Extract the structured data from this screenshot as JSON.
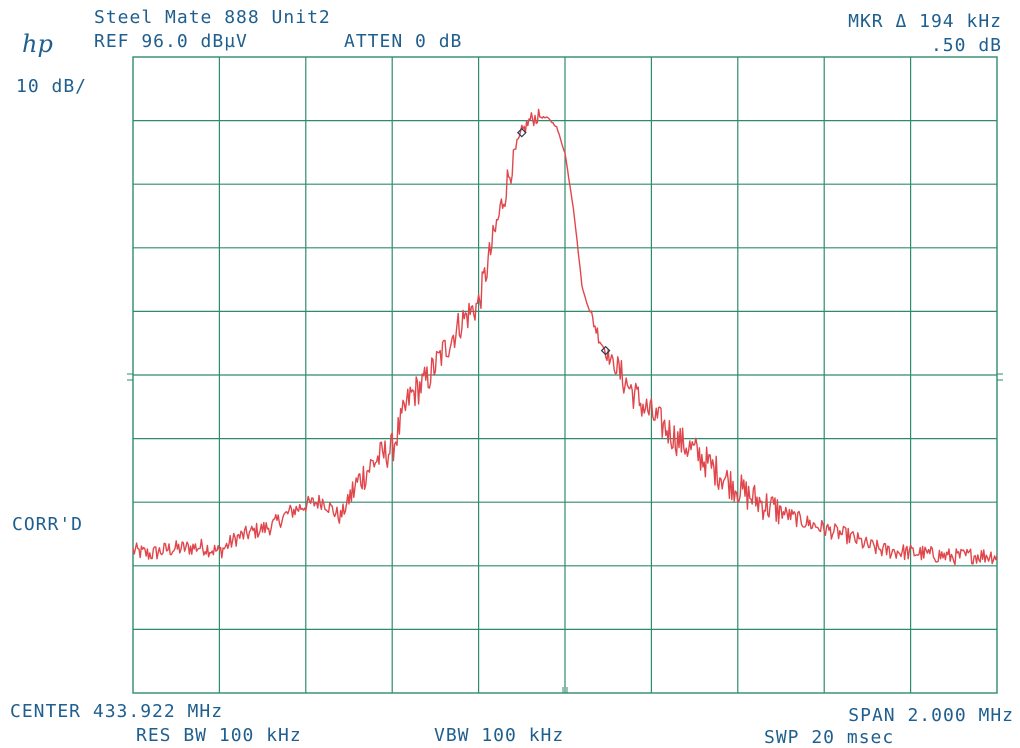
{
  "header": {
    "logo": "hp",
    "title": "Steel Mate 888 Unit2",
    "ref_level": "REF 96.0 dBµV",
    "attenuation": "ATTEN 0 dB",
    "marker_delta": "MKR Δ 194 kHz",
    "marker_value": ".50 dB",
    "scale": "10 dB/"
  },
  "side": {
    "corr_label": "CORR'D"
  },
  "footer": {
    "center": "CENTER 433.922 MHz",
    "span": "SPAN 2.000 MHz",
    "res_bw": "RES BW 100 kHz",
    "vbw": "VBW 100 kHz",
    "sweep": "SWP 20 msec"
  },
  "colors": {
    "grid": "#2e8b6e",
    "trace": "#e0474c",
    "text": "#1f5f8f"
  },
  "chart_data": {
    "type": "line",
    "x_unit": "MHz",
    "y_unit": "dBµV",
    "xlim": [
      432.922,
      434.922
    ],
    "ylim": [
      -4.0,
      96.0
    ],
    "grid": true,
    "series": [
      {
        "x": [
          432.922,
          432.962,
          433.002,
          433.042,
          433.082,
          433.122,
          433.162,
          433.202,
          433.242,
          433.282,
          433.322,
          433.362,
          433.402,
          433.442,
          433.482,
          433.522,
          433.562,
          433.602,
          433.642,
          433.682,
          433.722,
          433.762,
          433.802,
          433.822,
          433.842,
          433.862,
          433.882,
          433.902,
          433.922,
          433.942,
          433.962,
          433.982,
          434.002,
          434.022,
          434.042,
          434.062,
          434.102,
          434.142,
          434.182,
          434.222,
          434.262,
          434.302,
          434.342,
          434.382,
          434.422,
          434.462,
          434.502,
          434.542,
          434.582,
          434.622,
          434.662,
          434.702,
          434.742,
          434.782,
          434.822,
          434.862,
          434.922
        ],
        "y": [
          18.4,
          17.8,
          18.6,
          18.8,
          19.0,
          18.2,
          20.4,
          21.4,
          22.2,
          24.3,
          25.6,
          26.2,
          23.6,
          29.1,
          32.5,
          34.4,
          42.5,
          45.2,
          49.8,
          54.4,
          57.2,
          69.0,
          80.1,
          84.1,
          86.2,
          86.6,
          86.4,
          85.1,
          80.9,
          72.0,
          59.6,
          55.5,
          51.8,
          49.0,
          46.9,
          44.9,
          41.2,
          38.5,
          35.8,
          34.0,
          31.5,
          29.2,
          27.2,
          25.7,
          24.5,
          23.3,
          22.3,
          21.4,
          20.6,
          19.2,
          18.4,
          18.2,
          18.0,
          17.7,
          17.4,
          17.6,
          17.6
        ]
      }
    ]
  }
}
